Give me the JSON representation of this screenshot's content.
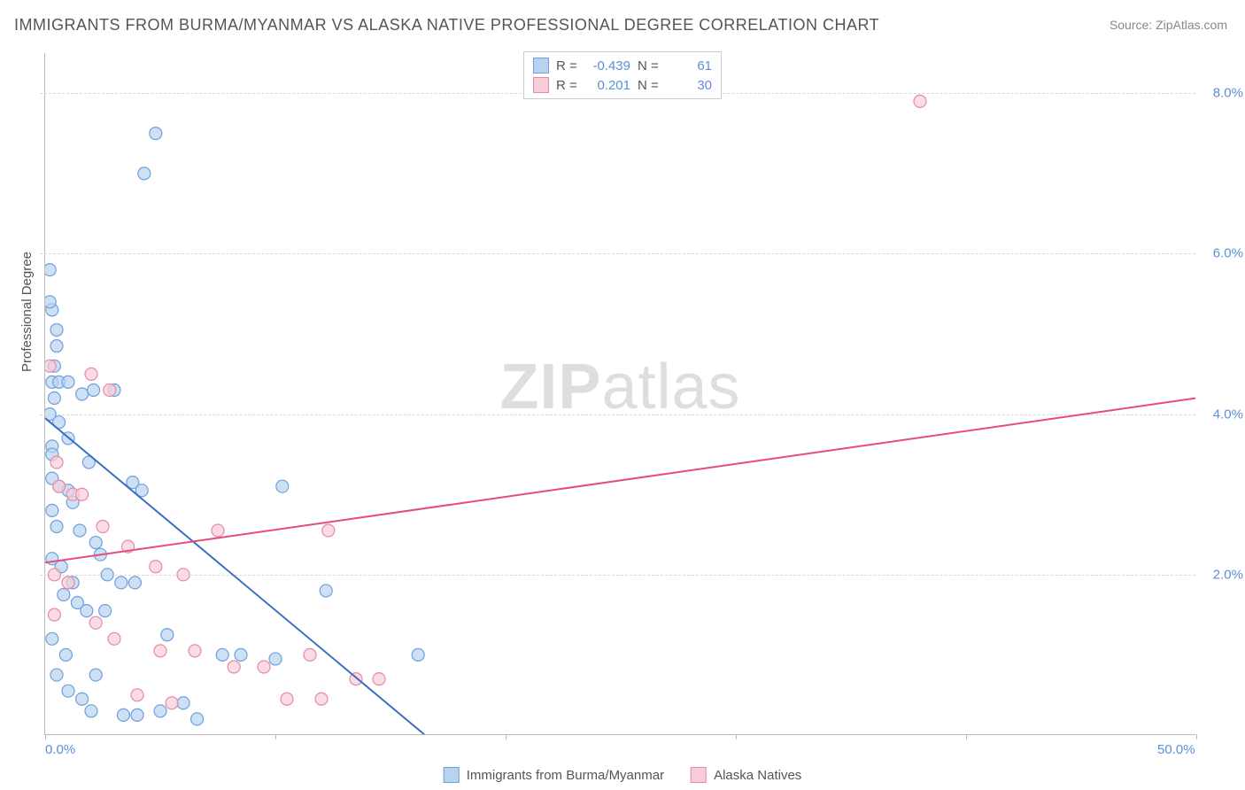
{
  "title": "IMMIGRANTS FROM BURMA/MYANMAR VS ALASKA NATIVE PROFESSIONAL DEGREE CORRELATION CHART",
  "source": "Source: ZipAtlas.com",
  "ylabel": "Professional Degree",
  "watermark_a": "ZIP",
  "watermark_b": "atlas",
  "chart": {
    "type": "scatter",
    "xlim": [
      0,
      50
    ],
    "ylim": [
      0,
      8.5
    ],
    "xticks": [
      0,
      10,
      20,
      30,
      40,
      50
    ],
    "yticks": [
      2,
      4,
      6,
      8
    ],
    "xtick_labels_shown": {
      "0": "0.0%",
      "50": "50.0%"
    },
    "ytick_labels": [
      "2.0%",
      "4.0%",
      "6.0%",
      "8.0%"
    ],
    "grid_color": "#d8d8d8",
    "background_color": "#ffffff",
    "series": [
      {
        "name": "Immigrants from Burma/Myanmar",
        "R": "-0.439",
        "N": "61",
        "marker_fill": "#b9d3ef",
        "marker_stroke": "#6ea0db",
        "marker_opacity": 0.7,
        "marker_r": 7,
        "line_color": "#3b6fc0",
        "line_width": 2,
        "regression": {
          "x1": 0,
          "y1": 3.95,
          "x2": 16.5,
          "y2": 0
        },
        "points": [
          [
            0.2,
            5.8
          ],
          [
            0.3,
            5.3
          ],
          [
            0.5,
            5.05
          ],
          [
            0.5,
            4.85
          ],
          [
            0.4,
            4.6
          ],
          [
            0.3,
            4.4
          ],
          [
            0.6,
            4.4
          ],
          [
            1.0,
            4.4
          ],
          [
            1.6,
            4.25
          ],
          [
            2.1,
            4.3
          ],
          [
            3.0,
            4.3
          ],
          [
            0.2,
            4.0
          ],
          [
            0.6,
            3.9
          ],
          [
            1.0,
            3.7
          ],
          [
            0.3,
            3.6
          ],
          [
            0.3,
            3.5
          ],
          [
            0.6,
            3.1
          ],
          [
            1.0,
            3.05
          ],
          [
            1.2,
            2.9
          ],
          [
            0.3,
            2.8
          ],
          [
            0.5,
            2.6
          ],
          [
            1.5,
            2.55
          ],
          [
            2.2,
            2.4
          ],
          [
            3.8,
            3.15
          ],
          [
            4.2,
            3.05
          ],
          [
            10.3,
            3.1
          ],
          [
            2.4,
            2.25
          ],
          [
            2.7,
            2.0
          ],
          [
            3.3,
            1.9
          ],
          [
            3.9,
            1.9
          ],
          [
            0.8,
            1.75
          ],
          [
            1.4,
            1.65
          ],
          [
            1.8,
            1.55
          ],
          [
            2.6,
            1.55
          ],
          [
            12.2,
            1.8
          ],
          [
            5.3,
            1.25
          ],
          [
            7.7,
            1.0
          ],
          [
            8.5,
            1.0
          ],
          [
            10.0,
            0.95
          ],
          [
            16.2,
            1.0
          ],
          [
            0.5,
            0.75
          ],
          [
            1.0,
            0.55
          ],
          [
            1.6,
            0.45
          ],
          [
            2.0,
            0.3
          ],
          [
            3.4,
            0.25
          ],
          [
            4.0,
            0.25
          ],
          [
            5.0,
            0.3
          ],
          [
            6.0,
            0.4
          ],
          [
            6.6,
            0.2
          ],
          [
            4.8,
            7.5
          ],
          [
            4.3,
            7.0
          ],
          [
            0.3,
            2.2
          ],
          [
            0.7,
            2.1
          ],
          [
            1.2,
            1.9
          ],
          [
            0.3,
            1.2
          ],
          [
            0.9,
            1.0
          ],
          [
            2.2,
            0.75
          ],
          [
            0.3,
            3.2
          ],
          [
            0.2,
            5.4
          ],
          [
            0.4,
            4.2
          ],
          [
            1.9,
            3.4
          ]
        ]
      },
      {
        "name": "Alaska Natives",
        "R": "0.201",
        "N": "30",
        "marker_fill": "#f6cdd8",
        "marker_stroke": "#e78aa5",
        "marker_opacity": 0.7,
        "marker_r": 7,
        "line_color": "#e54c7a",
        "line_width": 2,
        "regression": {
          "x1": 0,
          "y1": 2.15,
          "x2": 50,
          "y2": 4.2
        },
        "points": [
          [
            0.2,
            4.6
          ],
          [
            2.0,
            4.5
          ],
          [
            2.8,
            4.3
          ],
          [
            0.5,
            3.4
          ],
          [
            0.6,
            3.1
          ],
          [
            1.2,
            3.0
          ],
          [
            1.6,
            3.0
          ],
          [
            2.5,
            2.6
          ],
          [
            3.6,
            2.35
          ],
          [
            4.8,
            2.1
          ],
          [
            6.0,
            2.0
          ],
          [
            7.5,
            2.55
          ],
          [
            12.3,
            2.55
          ],
          [
            0.4,
            2.0
          ],
          [
            1.0,
            1.9
          ],
          [
            2.2,
            1.4
          ],
          [
            3.0,
            1.2
          ],
          [
            5.0,
            1.05
          ],
          [
            6.5,
            1.05
          ],
          [
            8.2,
            0.85
          ],
          [
            9.5,
            0.85
          ],
          [
            11.5,
            1.0
          ],
          [
            13.5,
            0.7
          ],
          [
            14.5,
            0.7
          ],
          [
            12.0,
            0.45
          ],
          [
            10.5,
            0.45
          ],
          [
            4.0,
            0.5
          ],
          [
            5.5,
            0.4
          ],
          [
            0.4,
            1.5
          ],
          [
            38.0,
            7.9
          ]
        ]
      }
    ]
  }
}
